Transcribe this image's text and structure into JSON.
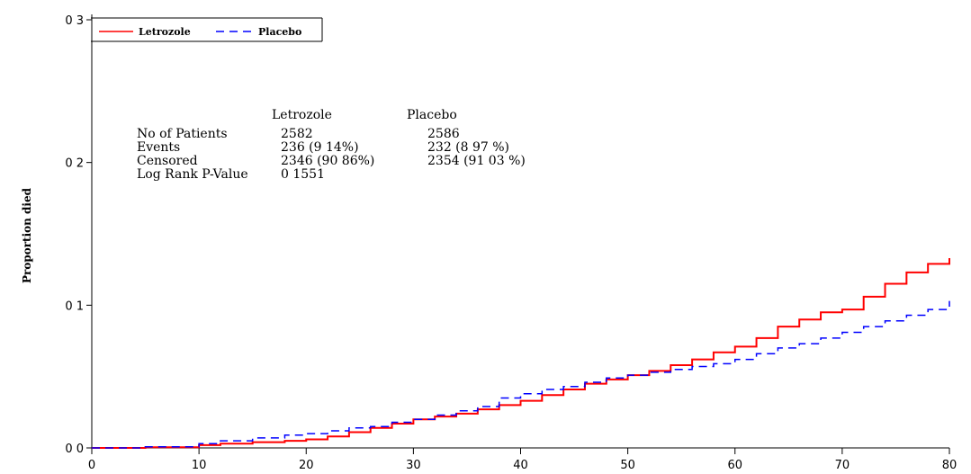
{
  "chart_data": {
    "type": "line",
    "title": "",
    "xlabel": "",
    "ylabel": "Proportion died",
    "xlim": [
      0,
      80
    ],
    "ylim": [
      0,
      0.3
    ],
    "x_ticks": [
      0,
      10,
      20,
      30,
      40,
      50,
      60,
      70,
      80
    ],
    "x_tick_labels": [
      "0",
      "10",
      "20",
      "30",
      "40",
      "50",
      "60",
      "70",
      "80"
    ],
    "y_ticks": [
      0,
      0.1,
      0.2,
      0.3
    ],
    "y_tick_labels": [
      "0 0",
      "0 1",
      "0 2",
      "0 3"
    ],
    "grid": false,
    "legend_position": "top-left",
    "series": [
      {
        "name": "Letrozole",
        "color": "#ff0000",
        "style": "solid",
        "points": [
          [
            0,
            0
          ],
          [
            5,
            0.0005
          ],
          [
            10,
            0.002
          ],
          [
            12,
            0.003
          ],
          [
            15,
            0.004
          ],
          [
            18,
            0.005
          ],
          [
            20,
            0.006
          ],
          [
            22,
            0.008
          ],
          [
            24,
            0.011
          ],
          [
            26,
            0.014
          ],
          [
            28,
            0.017
          ],
          [
            30,
            0.02
          ],
          [
            32,
            0.022
          ],
          [
            34,
            0.024
          ],
          [
            36,
            0.027
          ],
          [
            38,
            0.03
          ],
          [
            40,
            0.033
          ],
          [
            42,
            0.037
          ],
          [
            44,
            0.041
          ],
          [
            46,
            0.045
          ],
          [
            48,
            0.048
          ],
          [
            50,
            0.051
          ],
          [
            52,
            0.054
          ],
          [
            54,
            0.058
          ],
          [
            56,
            0.062
          ],
          [
            58,
            0.067
          ],
          [
            60,
            0.071
          ],
          [
            62,
            0.077
          ],
          [
            64,
            0.085
          ],
          [
            66,
            0.09
          ],
          [
            68,
            0.095
          ],
          [
            70,
            0.097
          ],
          [
            72,
            0.106
          ],
          [
            74,
            0.115
          ],
          [
            76,
            0.123
          ],
          [
            78,
            0.129
          ],
          [
            80,
            0.133
          ]
        ]
      },
      {
        "name": "Placebo",
        "color": "#0000ff",
        "style": "dashed",
        "points": [
          [
            0,
            0
          ],
          [
            5,
            0.0008
          ],
          [
            10,
            0.003
          ],
          [
            12,
            0.005
          ],
          [
            15,
            0.007
          ],
          [
            18,
            0.009
          ],
          [
            20,
            0.01
          ],
          [
            22,
            0.012
          ],
          [
            24,
            0.014
          ],
          [
            26,
            0.015
          ],
          [
            28,
            0.018
          ],
          [
            30,
            0.02
          ],
          [
            32,
            0.023
          ],
          [
            34,
            0.026
          ],
          [
            36,
            0.029
          ],
          [
            38,
            0.035
          ],
          [
            40,
            0.038
          ],
          [
            42,
            0.041
          ],
          [
            44,
            0.043
          ],
          [
            46,
            0.046
          ],
          [
            48,
            0.049
          ],
          [
            50,
            0.051
          ],
          [
            52,
            0.053
          ],
          [
            54,
            0.055
          ],
          [
            56,
            0.057
          ],
          [
            58,
            0.059
          ],
          [
            60,
            0.062
          ],
          [
            62,
            0.066
          ],
          [
            64,
            0.07
          ],
          [
            66,
            0.073
          ],
          [
            68,
            0.077
          ],
          [
            70,
            0.081
          ],
          [
            72,
            0.085
          ],
          [
            74,
            0.089
          ],
          [
            76,
            0.093
          ],
          [
            78,
            0.097
          ],
          [
            80,
            0.103
          ]
        ]
      }
    ],
    "legend": [
      {
        "label": "Letrozole",
        "color": "#ff0000",
        "style": "solid"
      },
      {
        "label": "Placebo",
        "color": "#0000ff",
        "style": "dashed"
      }
    ],
    "stats_table": {
      "header_letrozole": "Letrozole",
      "header_placebo": "Placebo",
      "rows": [
        {
          "label": "No of Patients",
          "letrozole": "2582",
          "placebo": "2586"
        },
        {
          "label": "Events",
          "letrozole": "236 (9 14%)",
          "placebo": "232 (8 97 %)"
        },
        {
          "label": "Censored",
          "letrozole": "2346 (90 86%)",
          "placebo": "2354 (91 03 %)"
        },
        {
          "label": "Log Rank P-Value",
          "letrozole": "0 1551",
          "placebo": ""
        }
      ]
    }
  }
}
